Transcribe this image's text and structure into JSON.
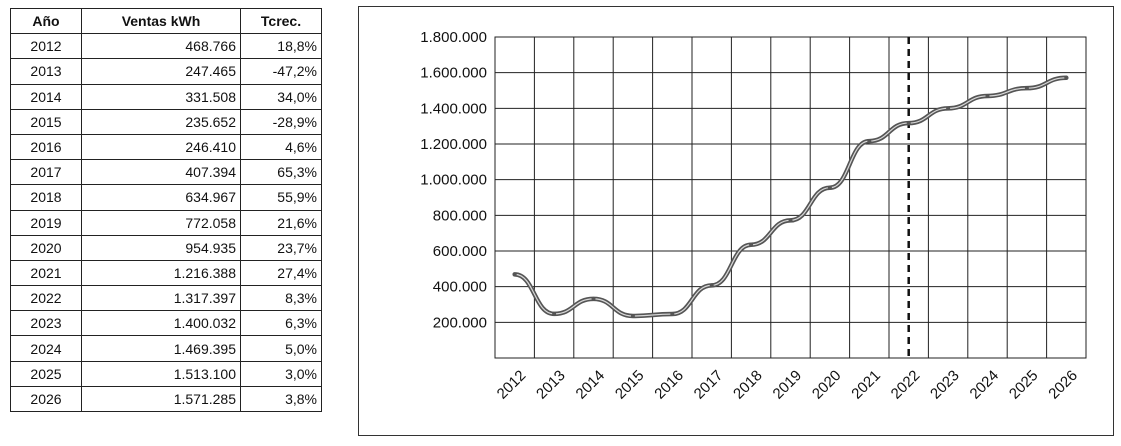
{
  "table": {
    "headers": [
      "Año",
      "Ventas kWh",
      "Tcrec."
    ],
    "rows": [
      [
        "2012",
        "468.766",
        "18,8%"
      ],
      [
        "2013",
        "247.465",
        "-47,2%"
      ],
      [
        "2014",
        "331.508",
        "34,0%"
      ],
      [
        "2015",
        "235.652",
        "-28,9%"
      ],
      [
        "2016",
        "246.410",
        "4,6%"
      ],
      [
        "2017",
        "407.394",
        "65,3%"
      ],
      [
        "2018",
        "634.967",
        "55,9%"
      ],
      [
        "2019",
        "772.058",
        "21,6%"
      ],
      [
        "2020",
        "954.935",
        "23,7%"
      ],
      [
        "2021",
        "1.216.388",
        "27,4%"
      ],
      [
        "2022",
        "1.317.397",
        "8,3%"
      ],
      [
        "2023",
        "1.400.032",
        "6,3%"
      ],
      [
        "2024",
        "1.469.395",
        "5,0%"
      ],
      [
        "2025",
        "1.513.100",
        "3,0%"
      ],
      [
        "2026",
        "1.571.285",
        "3,8%"
      ]
    ]
  },
  "chart_data": {
    "type": "line",
    "title": "",
    "xlabel": "",
    "ylabel": "",
    "x": [
      "2012",
      "2013",
      "2014",
      "2015",
      "2016",
      "2017",
      "2018",
      "2019",
      "2020",
      "2021",
      "2022",
      "2023",
      "2024",
      "2025",
      "2026"
    ],
    "series": [
      {
        "values": [
          468766,
          247465,
          331508,
          235652,
          246410,
          407394,
          634967,
          772058,
          954935,
          1216388,
          1317397,
          1400032,
          1469395,
          1513100,
          1571285
        ]
      }
    ],
    "ylim": [
      0,
      1800000
    ],
    "yticks": [
      "1.800.000",
      "1.600.000",
      "1.400.000",
      "1.200.000",
      "1.000.000",
      "800.000",
      "600.000",
      "400.000",
      "200.000"
    ],
    "ytick_values": [
      1800000,
      1600000,
      1400000,
      1200000,
      1000000,
      800000,
      600000,
      400000,
      200000
    ],
    "grid": true,
    "legend": "none",
    "vertical_marker_x": "2022",
    "line_color": "#555555"
  }
}
